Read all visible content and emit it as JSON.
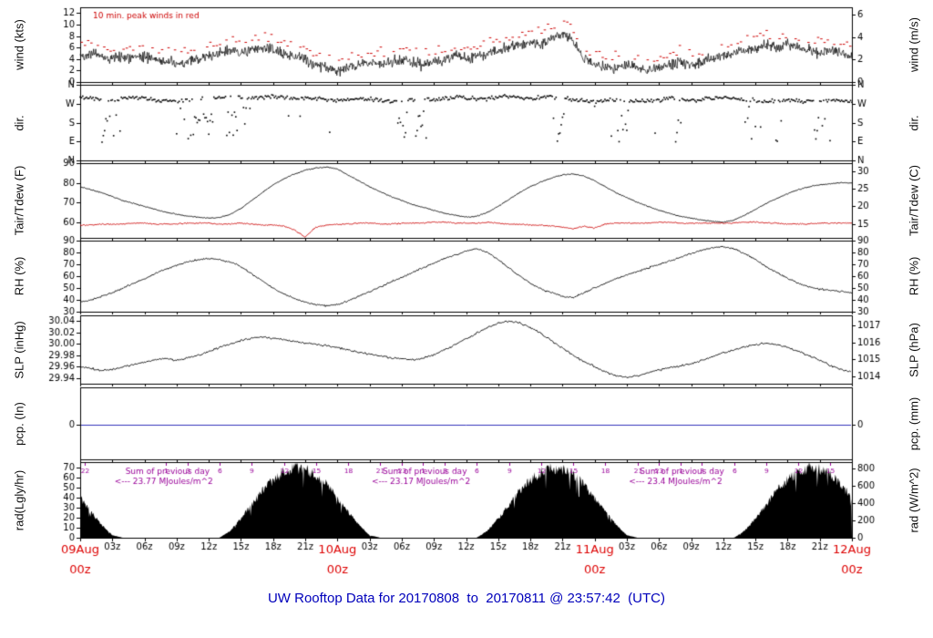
{
  "title": {
    "text": "UW Rooftop Data for 20170808  to  20170811 @ 23:57:42  (UTC)",
    "color": "#0000bb"
  },
  "colors": {
    "axis": "#000000",
    "trace": "#000000",
    "wind_peak": "#cc0000",
    "dewpoint": "#cc0000",
    "date_label": "#dd0000",
    "precip_line": "#3333bb",
    "rad_annotation": "#990099"
  },
  "x_axis": {
    "hours_total": 72,
    "tick_interval_hours": 3,
    "hour_tick_labels": [
      "03z",
      "06z",
      "09z",
      "12z",
      "15z",
      "18z",
      "21z"
    ],
    "day_labels": [
      {
        "date": "09Aug",
        "z": "00z",
        "t": 0
      },
      {
        "date": "10Aug",
        "z": "00z",
        "t": 24
      },
      {
        "date": "11Aug",
        "z": "00z",
        "t": 48
      },
      {
        "date": "12Aug",
        "z": "00z",
        "t": 72
      }
    ]
  },
  "panels": [
    {
      "id": "wind",
      "left_label": "wind (kts)",
      "right_label": "wind (m/s)",
      "ylim": [
        0,
        13
      ],
      "left_ticks": [
        {
          "v": 0,
          "label": "0"
        },
        {
          "v": 2,
          "label": "2"
        },
        {
          "v": 4,
          "label": "4"
        },
        {
          "v": 6,
          "label": "6"
        },
        {
          "v": 8,
          "label": "8"
        },
        {
          "v": 10,
          "label": "10"
        },
        {
          "v": 12,
          "label": "12"
        }
      ],
      "right_ticks": [
        {
          "v": 0,
          "label": "0"
        },
        {
          "v": 3.89,
          "label": "2"
        },
        {
          "v": 7.78,
          "label": "4"
        },
        {
          "v": 11.66,
          "label": "6"
        }
      ],
      "annotation": {
        "text": "10 min. peak winds in red",
        "t": 1.2
      }
    },
    {
      "id": "dir",
      "left_label": "dir.",
      "right_label": "dir.",
      "ylim": [
        0,
        360
      ],
      "left_ticks": [
        {
          "v": 360,
          "label": "N"
        },
        {
          "v": 270,
          "label": "W"
        },
        {
          "v": 180,
          "label": "S"
        },
        {
          "v": 90,
          "label": "E"
        },
        {
          "v": 0,
          "label": "N"
        }
      ],
      "right_ticks": [
        {
          "v": 360,
          "label": "N"
        },
        {
          "v": 270,
          "label": "W"
        },
        {
          "v": 180,
          "label": "S"
        },
        {
          "v": 90,
          "label": "E"
        },
        {
          "v": 0,
          "label": "N"
        }
      ]
    },
    {
      "id": "temp",
      "left_label": "Tair/Tdew (F)",
      "right_label": "Tair/Tdew (C)",
      "ylim": [
        52,
        90
      ],
      "left_ticks": [
        {
          "v": 90,
          "label": "90"
        },
        {
          "v": 80,
          "label": "80"
        },
        {
          "v": 70,
          "label": "70"
        },
        {
          "v": 60,
          "label": "60"
        }
      ],
      "right_ticks": [
        {
          "v": 86,
          "label": "30"
        },
        {
          "v": 77,
          "label": "25"
        },
        {
          "v": 68,
          "label": "20"
        },
        {
          "v": 59,
          "label": "15"
        }
      ]
    },
    {
      "id": "rh",
      "left_label": "RH (%)",
      "right_label": "RH (%)",
      "ylim": [
        30,
        90
      ],
      "left_ticks": [
        {
          "v": 90,
          "label": "90"
        },
        {
          "v": 80,
          "label": "80"
        },
        {
          "v": 70,
          "label": "70"
        },
        {
          "v": 60,
          "label": "60"
        },
        {
          "v": 50,
          "label": "50"
        },
        {
          "v": 40,
          "label": "40"
        },
        {
          "v": 30,
          "label": "30"
        }
      ],
      "right_ticks": [
        {
          "v": 90,
          "label": "90"
        },
        {
          "v": 80,
          "label": "80"
        },
        {
          "v": 70,
          "label": "70"
        },
        {
          "v": 60,
          "label": "60"
        },
        {
          "v": 50,
          "label": "50"
        },
        {
          "v": 40,
          "label": "40"
        },
        {
          "v": 30,
          "label": "30"
        }
      ]
    },
    {
      "id": "slp",
      "left_label": "SLP (inHg)",
      "right_label": "SLP (hPa)",
      "ylim": [
        29.93,
        30.05
      ],
      "left_ticks": [
        {
          "v": 30.04,
          "label": "30.04"
        },
        {
          "v": 30.02,
          "label": "30.02"
        },
        {
          "v": 30.0,
          "label": "30.00"
        },
        {
          "v": 29.98,
          "label": "29.98"
        },
        {
          "v": 29.96,
          "label": "29.96"
        },
        {
          "v": 29.94,
          "label": "29.94"
        }
      ],
      "right_ticks": [
        {
          "v": 30.032,
          "label": "1017"
        },
        {
          "v": 30.0025,
          "label": "1016"
        },
        {
          "v": 29.9729,
          "label": "1015"
        },
        {
          "v": 29.9434,
          "label": "1014"
        }
      ]
    },
    {
      "id": "pcp",
      "left_label": "pcp. (In)",
      "right_label": "pcp. (mm)",
      "ylim": [
        -0.95,
        1.05
      ],
      "left_ticks": [
        {
          "v": 0,
          "label": "0"
        }
      ],
      "right_ticks": [
        {
          "v": 0,
          "label": "0"
        }
      ]
    },
    {
      "id": "rad",
      "left_label": "rad(Lgly/hr)",
      "right_label": "rad (W/m^2)",
      "ylim": [
        0,
        75
      ],
      "left_ticks": [
        {
          "v": 70,
          "label": "70"
        },
        {
          "v": 60,
          "label": "60"
        },
        {
          "v": 50,
          "label": "50"
        },
        {
          "v": 40,
          "label": "40"
        },
        {
          "v": 30,
          "label": "30"
        },
        {
          "v": 20,
          "label": "20"
        },
        {
          "v": 10,
          "label": "10"
        },
        {
          "v": 0,
          "label": "0"
        }
      ],
      "right_ticks": [
        {
          "v": 68.8,
          "label": "800"
        },
        {
          "v": 51.6,
          "label": "600"
        },
        {
          "v": 34.4,
          "label": "400"
        },
        {
          "v": 17.2,
          "label": "200"
        },
        {
          "v": 0,
          "label": "0"
        }
      ],
      "sum_annotations": [
        {
          "t": 3.2,
          "line1": "Sum of previous day",
          "line2": "<--- 23.77 MJoules/m^2"
        },
        {
          "t": 27.2,
          "line1": "Sum of previous day",
          "line2": "<--- 23.17 MJoules/m^2"
        },
        {
          "t": 51.2,
          "line1": "Sum of previous day",
          "line2": "<--- 23.4 MJoules/m^2"
        }
      ],
      "local_hour_labels": [
        {
          "label": "22",
          "t": 0.4
        },
        {
          "label": "1",
          "t": 8
        },
        {
          "label": "3",
          "t": 10
        },
        {
          "label": "6",
          "t": 13
        },
        {
          "label": "9",
          "t": 16
        },
        {
          "label": "12",
          "t": 19
        },
        {
          "label": "15",
          "t": 22
        },
        {
          "label": "18",
          "t": 25
        },
        {
          "label": "21",
          "t": 28
        },
        {
          "label": "23",
          "t": 30
        },
        {
          "label": "1",
          "t": 32
        },
        {
          "label": "3",
          "t": 34
        },
        {
          "label": "6",
          "t": 37
        },
        {
          "label": "9",
          "t": 40
        },
        {
          "label": "12",
          "t": 43
        },
        {
          "label": "15",
          "t": 46
        },
        {
          "label": "18",
          "t": 49
        },
        {
          "label": "21",
          "t": 52
        },
        {
          "label": "23",
          "t": 54
        },
        {
          "label": "1",
          "t": 56
        },
        {
          "label": "3",
          "t": 58
        },
        {
          "label": "6",
          "t": 61
        },
        {
          "label": "9",
          "t": 64
        },
        {
          "label": "12",
          "t": 67
        },
        {
          "label": "15",
          "t": 70
        }
      ]
    }
  ],
  "chart_data": {
    "type": "line",
    "x_unit": "hours since 2017-08-09 00z (UTC)",
    "x_range": [
      0,
      72
    ],
    "sample_interval_hours": 1,
    "series": [
      {
        "name": "wind_speed",
        "panel": "wind",
        "units": "kts",
        "style": "noisy-line",
        "color": "#000000",
        "values": [
          4.5,
          5,
          4.5,
          4,
          4.5,
          4,
          4.5,
          4,
          3.5,
          3,
          3.5,
          4,
          4.5,
          5,
          5.5,
          5,
          5.5,
          6,
          5.5,
          5,
          4.5,
          4,
          3,
          2.5,
          2,
          2.5,
          3,
          3.5,
          3,
          3.5,
          4,
          3.5,
          3,
          3.5,
          4,
          4.5,
          4,
          4.5,
          5,
          5.5,
          6,
          6.5,
          7,
          6.5,
          7.5,
          8.5,
          7,
          4,
          3,
          2.5,
          2.5,
          3,
          2.5,
          2,
          2.5,
          3,
          3.5,
          3,
          3.5,
          4,
          4.5,
          5,
          5.5,
          6,
          6.5,
          6,
          6.5,
          6,
          5.5,
          5,
          5.5,
          5,
          4.5
        ]
      },
      {
        "name": "wind_direction",
        "panel": "dir",
        "units": "deg",
        "style": "dots",
        "color": "#000000",
        "values": [
          300,
          295,
          290,
          285,
          295,
          300,
          295,
          290,
          285,
          280,
          285,
          290,
          295,
          300,
          305,
          300,
          295,
          300,
          305,
          300,
          295,
          300,
          295,
          290,
          285,
          290,
          295,
          290,
          285,
          280,
          285,
          290,
          295,
          290,
          295,
          300,
          295,
          290,
          295,
          300,
          305,
          300,
          295,
          300,
          305,
          300,
          290,
          285,
          280,
          285,
          290,
          285,
          280,
          285,
          290,
          295,
          290,
          285,
          290,
          295,
          300,
          295,
          290,
          285,
          280,
          285,
          290,
          285,
          280,
          285,
          290,
          285,
          280
        ],
        "outlier_windows": [
          [
            2,
            3.5
          ],
          [
            9,
            12.5
          ],
          [
            13.5,
            15.5
          ],
          [
            29.5,
            32.5
          ],
          [
            44,
            45.2
          ],
          [
            49.5,
            52
          ],
          [
            55,
            56.2
          ],
          [
            62,
            63.5
          ],
          [
            64.5,
            65.5
          ],
          [
            68.5,
            70
          ]
        ]
      },
      {
        "name": "air_temperature",
        "panel": "temp",
        "units": "F",
        "style": "line",
        "color": "#000000",
        "values": [
          78,
          76.5,
          75,
          73,
          71,
          69.5,
          68,
          66.5,
          65,
          64,
          63,
          62.5,
          62,
          62.5,
          64,
          67,
          71,
          75,
          79,
          82,
          84.5,
          86.5,
          87.5,
          88,
          87,
          84,
          81,
          78,
          75.5,
          73,
          71,
          69,
          67.5,
          66,
          64.5,
          63.5,
          62.5,
          63,
          65,
          68,
          71.5,
          75,
          78,
          80.5,
          82.5,
          84,
          84.5,
          83.5,
          81,
          78,
          75,
          72.5,
          70,
          68,
          66,
          64.5,
          63,
          62,
          61,
          60.5,
          60,
          61,
          63.5,
          66.5,
          69.5,
          72,
          74.5,
          76.5,
          78,
          79,
          79.5,
          80,
          80
        ]
      },
      {
        "name": "dew_point",
        "panel": "temp",
        "units": "F",
        "style": "line",
        "color": "#cc0000",
        "values": [
          58.5,
          58.5,
          59,
          59,
          59,
          59.5,
          59.5,
          59,
          59,
          59,
          59.5,
          59.5,
          59.5,
          59,
          59,
          59.5,
          59,
          58.5,
          58.5,
          58,
          56,
          52.5,
          57.5,
          58.5,
          59,
          59,
          59.5,
          59.5,
          59,
          59,
          59.5,
          59.5,
          59.5,
          60,
          60,
          59.5,
          59.5,
          59.5,
          60,
          59.5,
          59,
          59,
          58.5,
          58.5,
          58,
          57.5,
          56.5,
          58,
          57,
          59,
          59.5,
          59.5,
          59.5,
          59.5,
          60,
          60,
          59.5,
          59.5,
          59.5,
          59.5,
          59.5,
          59.5,
          60,
          60,
          59.5,
          59.5,
          59,
          59,
          59,
          59.5,
          59.5,
          59.5,
          59.5
        ]
      },
      {
        "name": "relative_humidity",
        "panel": "rh",
        "units": "%",
        "style": "line",
        "color": "#000000",
        "values": [
          38,
          40,
          43,
          46,
          50,
          54,
          58,
          62,
          66,
          69,
          72,
          74,
          75,
          74,
          72,
          68,
          62,
          56,
          50,
          45,
          41,
          38,
          36,
          35,
          36,
          39,
          43,
          47,
          51,
          55,
          59,
          63,
          67,
          71,
          75,
          78,
          81,
          83,
          80,
          74,
          67,
          60,
          54,
          49,
          46,
          43,
          42,
          46,
          50,
          54,
          58,
          61,
          64,
          67,
          70,
          73,
          76,
          79,
          82,
          84,
          85,
          83,
          79,
          74,
          68,
          63,
          58,
          54,
          51,
          49,
          48,
          47,
          46
        ]
      },
      {
        "name": "sea_level_pressure",
        "panel": "slp",
        "units": "inHg",
        "style": "line",
        "color": "#000000",
        "values": [
          29.96,
          29.957,
          29.953,
          29.955,
          29.96,
          29.964,
          29.968,
          29.972,
          29.974,
          29.971,
          29.975,
          29.98,
          29.986,
          29.994,
          30.0,
          30.006,
          30.01,
          30.012,
          30.01,
          30.007,
          30.004,
          30.001,
          29.999,
          29.997,
          29.994,
          29.989,
          29.985,
          29.982,
          29.979,
          29.976,
          29.974,
          29.972,
          29.975,
          29.981,
          29.989,
          29.999,
          30.009,
          30.019,
          30.029,
          30.036,
          30.04,
          30.037,
          30.029,
          30.018,
          30.005,
          29.992,
          29.98,
          29.969,
          29.96,
          29.951,
          29.944,
          29.941,
          29.944,
          29.949,
          29.954,
          29.958,
          29.961,
          29.965,
          29.971,
          29.978,
          29.984,
          29.989,
          29.994,
          29.998,
          30.001,
          29.999,
          29.994,
          29.987,
          29.979,
          29.971,
          29.962,
          29.955,
          29.95
        ]
      },
      {
        "name": "precipitation",
        "panel": "pcp",
        "units": "in",
        "style": "constant-line",
        "color": "#3333bb",
        "constant": 0
      },
      {
        "name": "solar_radiation",
        "panel": "rad",
        "units": "Lgly/hr",
        "style": "filled-area",
        "color": "#000000",
        "values": [
          40,
          26,
          13,
          2.5,
          0,
          0,
          0,
          0,
          0,
          0,
          0,
          0,
          0,
          0,
          7,
          19,
          33,
          47,
          58,
          66,
          70,
          69,
          63,
          53,
          40,
          26,
          13,
          2.5,
          0,
          0,
          0,
          0,
          0,
          0,
          0,
          0,
          0,
          0,
          7,
          19,
          33,
          47,
          58,
          66,
          70,
          69,
          63,
          53,
          40,
          26,
          13,
          2.5,
          0,
          0,
          0,
          0,
          0,
          0,
          0,
          0,
          0,
          0,
          7,
          19,
          33,
          47,
          58,
          66,
          70,
          69,
          63,
          53,
          40
        ]
      }
    ]
  }
}
